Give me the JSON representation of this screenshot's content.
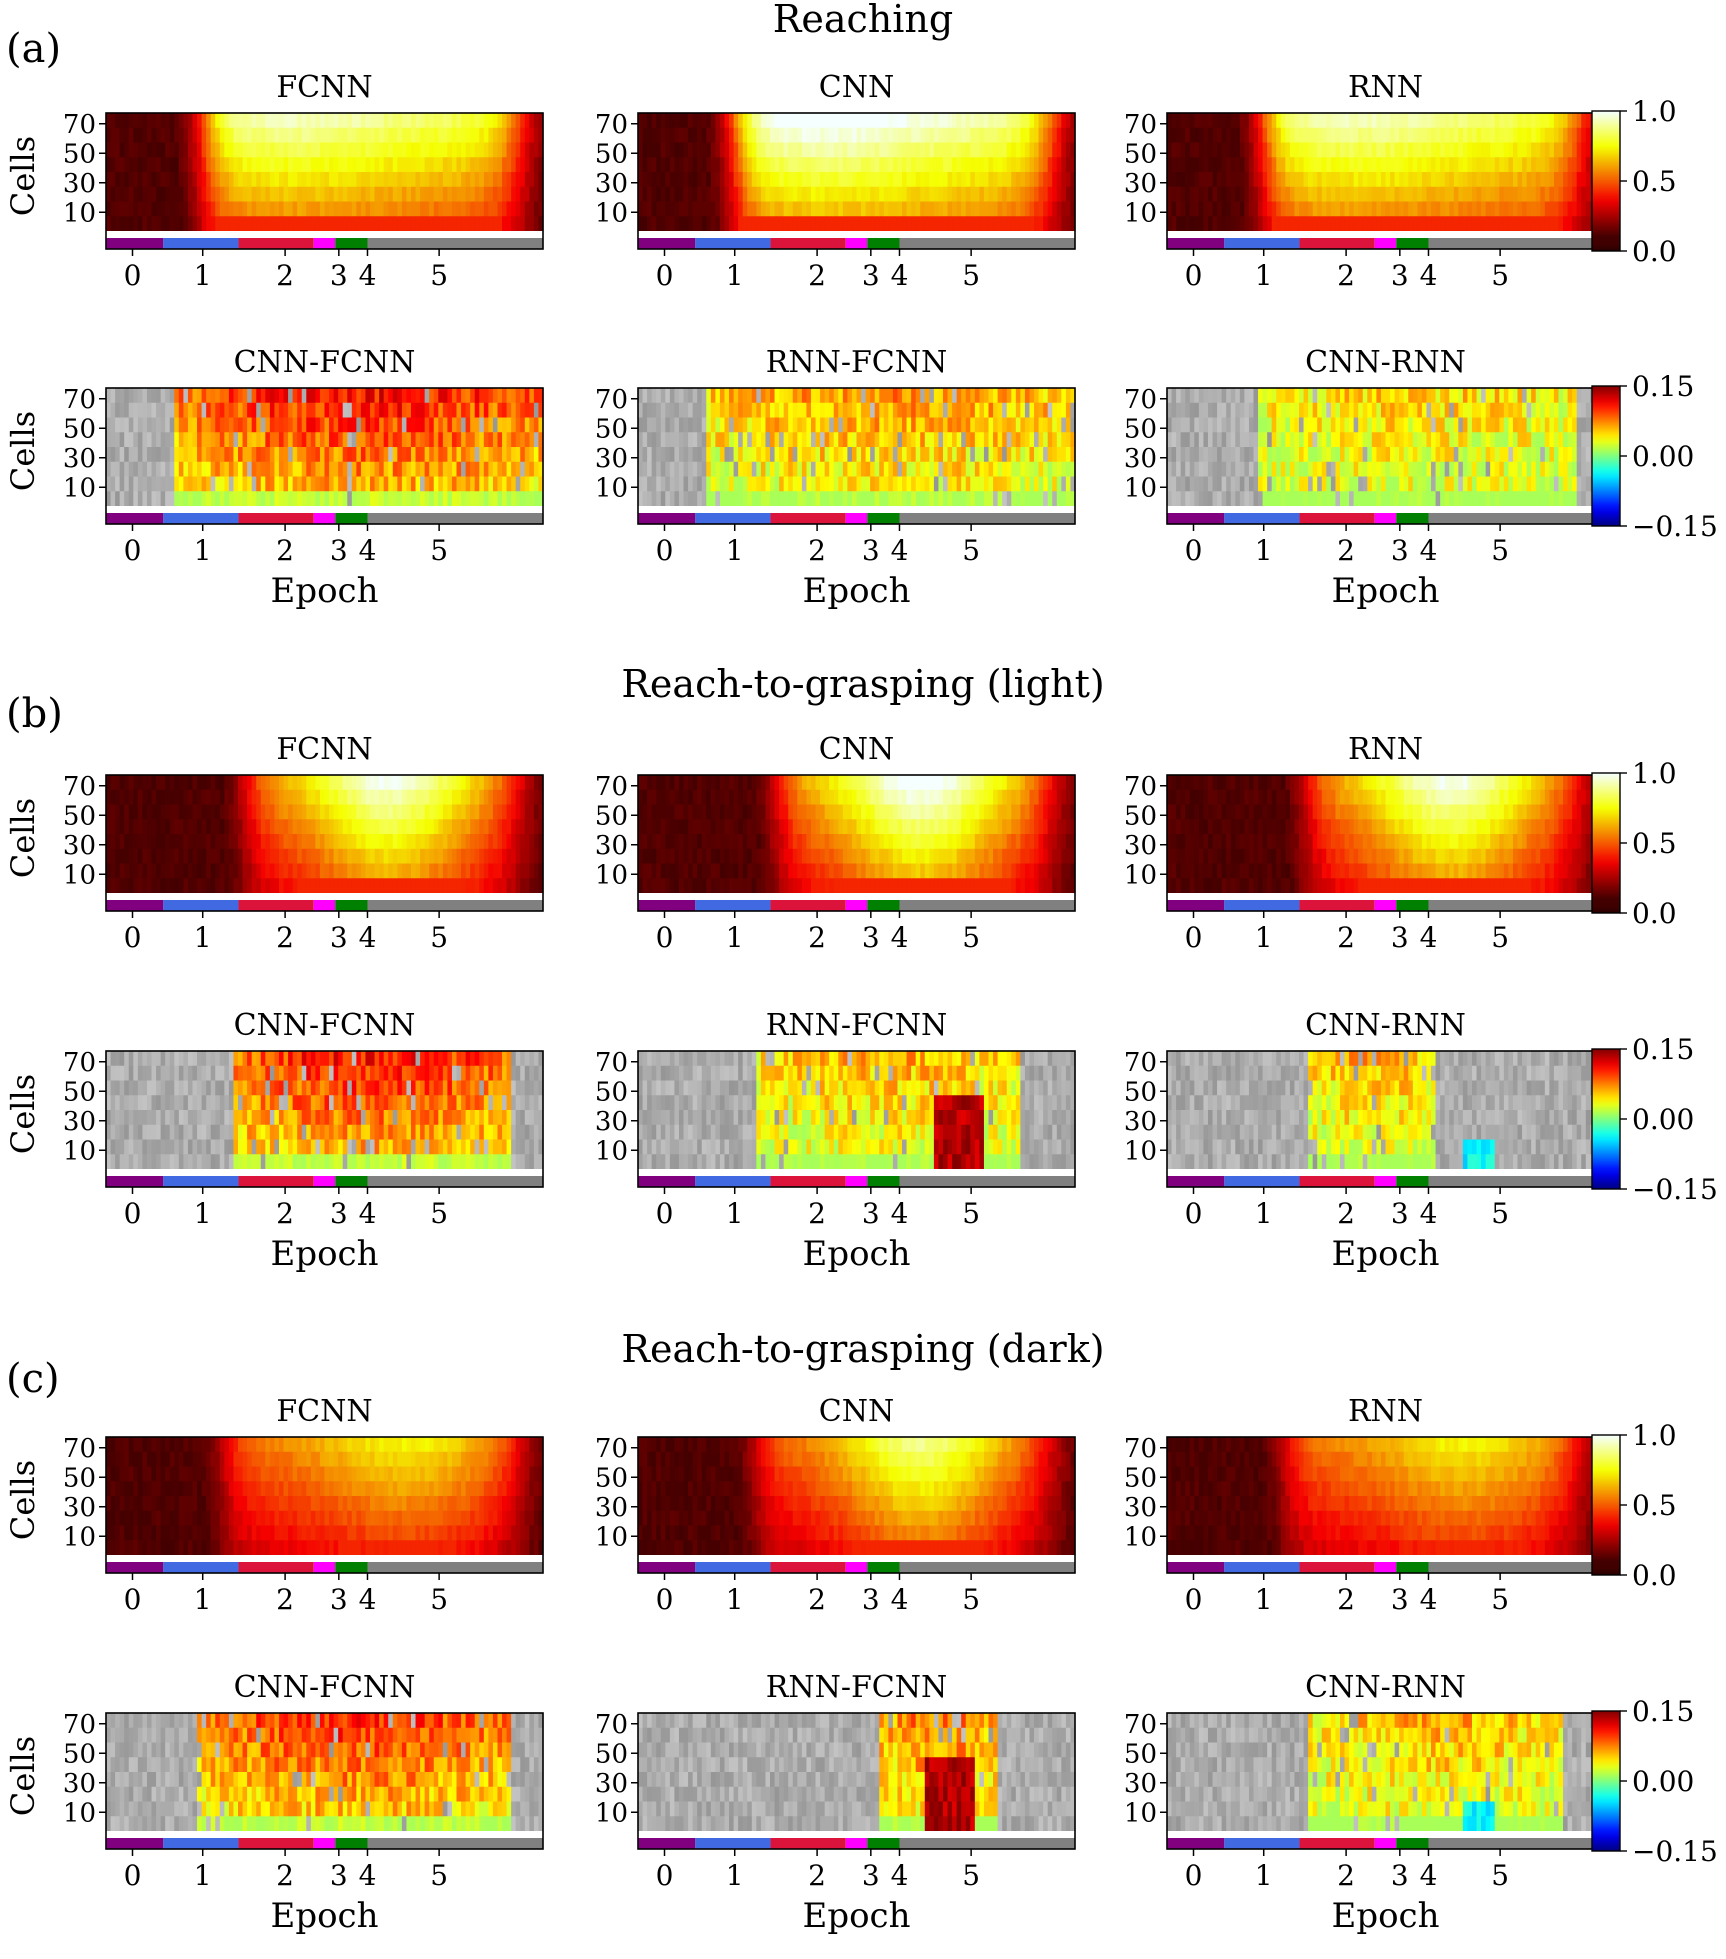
{
  "figure": {
    "panel_labels": [
      "(a)",
      "(b)",
      "(c)"
    ],
    "section_titles": [
      "Reaching",
      "Reach-to-grasping (light)",
      "Reach-to-grasping (dark)"
    ]
  },
  "colors": {
    "epoch_strip": [
      "#800080",
      "#4169e1",
      "#dc143c",
      "#ff00ff",
      "#008000",
      "#808080"
    ],
    "activation_colormap": "hot",
    "difference_colormap": "jet-with-gray-masked-zero"
  },
  "chart_data": [
    {
      "type": "heatmap",
      "panel": "a",
      "title": "FCNN",
      "ylabel": "Cells",
      "xlabel": "",
      "yticks": [
        "70",
        "50",
        "30",
        "10"
      ],
      "xticks": [
        "0",
        "1",
        "2",
        "3",
        "4",
        "5"
      ],
      "colorbar": null,
      "kind": "abs",
      "onset": 1.0,
      "peak": "mid",
      "amp": 0.85
    },
    {
      "type": "heatmap",
      "panel": "a",
      "title": "CNN",
      "ylabel": "",
      "xlabel": "",
      "yticks": [
        "70",
        "50",
        "30",
        "10"
      ],
      "xticks": [
        "0",
        "1",
        "2",
        "3",
        "4",
        "5"
      ],
      "colorbar": null,
      "kind": "abs",
      "onset": 1.0,
      "peak": "mid",
      "amp": 0.95
    },
    {
      "type": "heatmap",
      "panel": "a",
      "title": "RNN",
      "ylabel": "",
      "xlabel": "",
      "yticks": [
        "70",
        "50",
        "30",
        "10"
      ],
      "xticks": [
        "0",
        "1",
        "2",
        "3",
        "4",
        "5"
      ],
      "colorbar": {
        "ticks": [
          "1.0",
          "0.5",
          "0.0"
        ],
        "range": [
          0,
          1
        ]
      },
      "kind": "abs",
      "onset": 1.0,
      "peak": "mid",
      "amp": 0.85
    },
    {
      "type": "heatmap",
      "panel": "a",
      "title": "CNN-FCNN",
      "ylabel": "Cells",
      "xlabel": "Epoch",
      "yticks": [
        "70",
        "50",
        "30",
        "10"
      ],
      "xticks": [
        "0",
        "1",
        "2",
        "3",
        "4",
        "5"
      ],
      "colorbar": null,
      "kind": "diff",
      "start": 0.6,
      "end": 5.8,
      "amp": 0.11
    },
    {
      "type": "heatmap",
      "panel": "a",
      "title": "RNN-FCNN",
      "ylabel": "",
      "xlabel": "Epoch",
      "yticks": [
        "70",
        "50",
        "30",
        "10"
      ],
      "xticks": [
        "0",
        "1",
        "2",
        "3",
        "4",
        "5"
      ],
      "colorbar": null,
      "kind": "diff",
      "start": 0.6,
      "end": 5.8,
      "amp": 0.07
    },
    {
      "type": "heatmap",
      "panel": "a",
      "title": "CNN-RNN",
      "ylabel": "",
      "xlabel": "Epoch",
      "yticks": [
        "70",
        "50",
        "30",
        "10"
      ],
      "xticks": [
        "0",
        "1",
        "2",
        "3",
        "4",
        "5"
      ],
      "colorbar": {
        "ticks": [
          "0.15",
          "0.00",
          "−0.15"
        ],
        "range": [
          -0.15,
          0.15
        ]
      },
      "kind": "diff",
      "start": 0.95,
      "end": 5.4,
      "amp": 0.05
    },
    {
      "type": "heatmap",
      "panel": "b",
      "title": "FCNN",
      "ylabel": "Cells",
      "xlabel": "",
      "yticks": [
        "70",
        "50",
        "30",
        "10"
      ],
      "xticks": [
        "0",
        "1",
        "2",
        "3",
        "4",
        "5"
      ],
      "colorbar": null,
      "kind": "abs",
      "onset": 1.6,
      "peak": "late",
      "amp": 0.9
    },
    {
      "type": "heatmap",
      "panel": "b",
      "title": "CNN",
      "ylabel": "",
      "xlabel": "",
      "yticks": [
        "70",
        "50",
        "30",
        "10"
      ],
      "xticks": [
        "0",
        "1",
        "2",
        "3",
        "4",
        "5"
      ],
      "colorbar": null,
      "kind": "abs",
      "onset": 1.6,
      "peak": "late",
      "amp": 0.95
    },
    {
      "type": "heatmap",
      "panel": "b",
      "title": "RNN",
      "ylabel": "",
      "xlabel": "",
      "yticks": [
        "70",
        "50",
        "30",
        "10"
      ],
      "xticks": [
        "0",
        "1",
        "2",
        "3",
        "4",
        "5"
      ],
      "colorbar": {
        "ticks": [
          "1.0",
          "0.5",
          "0.0"
        ],
        "range": [
          0,
          1
        ]
      },
      "kind": "abs",
      "onset": 1.6,
      "peak": "late",
      "amp": 0.9
    },
    {
      "type": "heatmap",
      "panel": "b",
      "title": "CNN-FCNN",
      "ylabel": "Cells",
      "xlabel": "Epoch",
      "yticks": [
        "70",
        "50",
        "30",
        "10"
      ],
      "xticks": [
        "0",
        "1",
        "2",
        "3",
        "4",
        "5"
      ],
      "colorbar": null,
      "kind": "diff",
      "start": 1.4,
      "end": 5.3,
      "amp": 0.11
    },
    {
      "type": "heatmap",
      "panel": "b",
      "title": "RNN-FCNN",
      "ylabel": "",
      "xlabel": "Epoch",
      "yticks": [
        "70",
        "50",
        "30",
        "10"
      ],
      "xticks": [
        "0",
        "1",
        "2",
        "3",
        "4",
        "5"
      ],
      "colorbar": null,
      "kind": "diff",
      "start": 1.3,
      "end": 5.0,
      "amp": 0.06,
      "hot_spot": 4.1
    },
    {
      "type": "heatmap",
      "panel": "b",
      "title": "CNN-RNN",
      "ylabel": "",
      "xlabel": "Epoch",
      "yticks": [
        "70",
        "50",
        "30",
        "10"
      ],
      "xticks": [
        "0",
        "1",
        "2",
        "3",
        "4",
        "5"
      ],
      "colorbar": {
        "ticks": [
          "0.15",
          "0.00",
          "−0.15"
        ],
        "range": [
          -0.15,
          0.15
        ]
      },
      "kind": "diff",
      "start": 1.6,
      "end": 3.4,
      "amp": 0.06,
      "cold_spot": 4.0
    },
    {
      "type": "heatmap",
      "panel": "c",
      "title": "FCNN",
      "ylabel": "Cells",
      "xlabel": "",
      "yticks": [
        "70",
        "50",
        "30",
        "10"
      ],
      "xticks": [
        "0",
        "1",
        "2",
        "3",
        "4",
        "5"
      ],
      "colorbar": null,
      "kind": "abs",
      "onset": 1.3,
      "peak": "flat",
      "amp": 0.65
    },
    {
      "type": "heatmap",
      "panel": "c",
      "title": "CNN",
      "ylabel": "",
      "xlabel": "",
      "yticks": [
        "70",
        "50",
        "30",
        "10"
      ],
      "xticks": [
        "0",
        "1",
        "2",
        "3",
        "4",
        "5"
      ],
      "colorbar": null,
      "kind": "abs",
      "onset": 1.3,
      "peak": "late",
      "amp": 0.8
    },
    {
      "type": "heatmap",
      "panel": "c",
      "title": "RNN",
      "ylabel": "",
      "xlabel": "",
      "yticks": [
        "70",
        "50",
        "30",
        "10"
      ],
      "xticks": [
        "0",
        "1",
        "2",
        "3",
        "4",
        "5"
      ],
      "colorbar": {
        "ticks": [
          "1.0",
          "0.5",
          "0.0"
        ],
        "range": [
          0,
          1
        ]
      },
      "kind": "abs",
      "onset": 1.3,
      "peak": "flat",
      "amp": 0.65
    },
    {
      "type": "heatmap",
      "panel": "c",
      "title": "CNN-FCNN",
      "ylabel": "Cells",
      "xlabel": "Epoch",
      "yticks": [
        "70",
        "50",
        "30",
        "10"
      ],
      "xticks": [
        "0",
        "1",
        "2",
        "3",
        "4",
        "5"
      ],
      "colorbar": null,
      "kind": "diff",
      "start": 0.9,
      "end": 5.3,
      "amp": 0.1
    },
    {
      "type": "heatmap",
      "panel": "c",
      "title": "RNN-FCNN",
      "ylabel": "",
      "xlabel": "Epoch",
      "yticks": [
        "70",
        "50",
        "30",
        "10"
      ],
      "xticks": [
        "0",
        "1",
        "2",
        "3",
        "4",
        "5"
      ],
      "colorbar": null,
      "kind": "diff",
      "start": 3.0,
      "end": 4.7,
      "amp": 0.08,
      "hot_spot": 4.0
    },
    {
      "type": "heatmap",
      "panel": "c",
      "title": "CNN-RNN",
      "ylabel": "",
      "xlabel": "Epoch",
      "yticks": [
        "70",
        "50",
        "30",
        "10"
      ],
      "xticks": [
        "0",
        "1",
        "2",
        "3",
        "4",
        "5"
      ],
      "colorbar": {
        "ticks": [
          "0.15",
          "0.00",
          "−0.15"
        ],
        "range": [
          -0.15,
          0.15
        ]
      },
      "kind": "diff",
      "start": 1.6,
      "end": 5.2,
      "amp": 0.06,
      "cold_spot": 4.0
    }
  ]
}
